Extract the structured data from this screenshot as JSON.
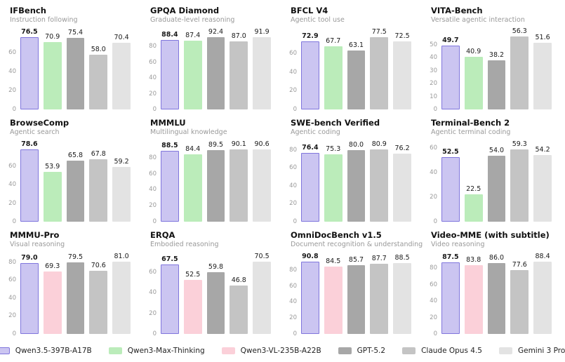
{
  "legend": {
    "position": "bottom-center",
    "models": [
      {
        "label": "Qwen3.5-397B-A17B",
        "fill": "#cbc5f1",
        "border": "#8076dd",
        "highlight": true
      },
      {
        "label": "Qwen3-Max-Thinking",
        "fill": "#bbecba",
        "border": "",
        "highlight": false
      },
      {
        "label": "Qwen3-VL-235B-A22B",
        "fill": "#fbd0d9",
        "border": "",
        "highlight": false
      },
      {
        "label": "GPT-5.2",
        "fill": "#a7a7a7",
        "border": "",
        "highlight": false
      },
      {
        "label": "Claude Opus 4.5",
        "fill": "#c4c4c4",
        "border": "",
        "highlight": false
      },
      {
        "label": "Gemini 3 Pro",
        "fill": "#e3e3e3",
        "border": "",
        "highlight": false
      }
    ]
  },
  "chart_style": {
    "grid": "off",
    "value_labels": "on",
    "y_headroom_factor": 1.015,
    "tick_label_color": "#9a9a9a"
  },
  "chart_data": [
    {
      "type": "bar",
      "title": "IFBench",
      "subtitle": "Instruction following",
      "tick_step": 20,
      "ylim": [
        0,
        77.6
      ],
      "series": [
        {
          "name": "Qwen3.5-397B-A17B",
          "value": 76.5
        },
        {
          "name": "Qwen3-Max-Thinking",
          "value": 70.9
        },
        {
          "name": "GPT-5.2",
          "value": 75.4
        },
        {
          "name": "Claude Opus 4.5",
          "value": 58.0
        },
        {
          "name": "Gemini 3 Pro",
          "value": 70.4
        }
      ]
    },
    {
      "type": "bar",
      "title": "GPQA Diamond",
      "subtitle": "Graduate-level reasoning",
      "tick_step": 20,
      "ylim": [
        0,
        93.8
      ],
      "series": [
        {
          "name": "Qwen3.5-397B-A17B",
          "value": 88.4
        },
        {
          "name": "Qwen3-Max-Thinking",
          "value": 87.4
        },
        {
          "name": "GPT-5.2",
          "value": 92.4
        },
        {
          "name": "Claude Opus 4.5",
          "value": 87.0
        },
        {
          "name": "Gemini 3 Pro",
          "value": 91.9
        }
      ]
    },
    {
      "type": "bar",
      "title": "BFCL V4",
      "subtitle": "Agentic tool use",
      "tick_step": 20,
      "ylim": [
        0,
        78.7
      ],
      "series": [
        {
          "name": "Qwen3.5-397B-A17B",
          "value": 72.9
        },
        {
          "name": "Qwen3-Max-Thinking",
          "value": 67.7
        },
        {
          "name": "GPT-5.2",
          "value": 63.1
        },
        {
          "name": "Claude Opus 4.5",
          "value": 77.5
        },
        {
          "name": "Gemini 3 Pro",
          "value": 72.5
        }
      ]
    },
    {
      "type": "bar",
      "title": "VITA-Bench",
      "subtitle": "Versatile agentic interaction",
      "tick_step": 10,
      "ylim": [
        0,
        57.1
      ],
      "series": [
        {
          "name": "Qwen3.5-397B-A17B",
          "value": 49.7
        },
        {
          "name": "Qwen3-Max-Thinking",
          "value": 40.9
        },
        {
          "name": "GPT-5.2",
          "value": 38.2
        },
        {
          "name": "Claude Opus 4.5",
          "value": 56.3
        },
        {
          "name": "Gemini 3 Pro",
          "value": 51.6
        }
      ]
    },
    {
      "type": "bar",
      "title": "BrowseComp",
      "subtitle": "Agentic search",
      "tick_step": 20,
      "ylim": [
        0,
        79.8
      ],
      "series": [
        {
          "name": "Qwen3.5-397B-A17B",
          "value": 78.6
        },
        {
          "name": "Qwen3-Max-Thinking",
          "value": 53.9
        },
        {
          "name": "GPT-5.2",
          "value": 65.8
        },
        {
          "name": "Claude Opus 4.5",
          "value": 67.8
        },
        {
          "name": "Gemini 3 Pro",
          "value": 59.2
        }
      ]
    },
    {
      "type": "bar",
      "title": "MMMLU",
      "subtitle": "Multilingual knowledge",
      "tick_step": 20,
      "ylim": [
        0,
        92.0
      ],
      "series": [
        {
          "name": "Qwen3.5-397B-A17B",
          "value": 88.5
        },
        {
          "name": "Qwen3-Max-Thinking",
          "value": 84.4
        },
        {
          "name": "GPT-5.2",
          "value": 89.5
        },
        {
          "name": "Claude Opus 4.5",
          "value": 90.1
        },
        {
          "name": "Gemini 3 Pro",
          "value": 90.6
        }
      ]
    },
    {
      "type": "bar",
      "title": "SWE-bench Verified",
      "subtitle": "Agentic coding",
      "tick_step": 20,
      "ylim": [
        0,
        82.1
      ],
      "series": [
        {
          "name": "Qwen3.5-397B-A17B",
          "value": 76.4
        },
        {
          "name": "Qwen3-Max-Thinking",
          "value": 75.3
        },
        {
          "name": "GPT-5.2",
          "value": 80.0
        },
        {
          "name": "Claude Opus 4.5",
          "value": 80.9
        },
        {
          "name": "Gemini 3 Pro",
          "value": 76.2
        }
      ]
    },
    {
      "type": "bar",
      "title": "Terminal-Bench 2",
      "subtitle": "Agentic terminal coding",
      "tick_step": 20,
      "ylim": [
        0,
        60.2
      ],
      "series": [
        {
          "name": "Qwen3.5-397B-A17B",
          "value": 52.5
        },
        {
          "name": "Qwen3-Max-Thinking",
          "value": 22.5
        },
        {
          "name": "GPT-5.2",
          "value": 54.0
        },
        {
          "name": "Claude Opus 4.5",
          "value": 59.3
        },
        {
          "name": "Gemini 3 Pro",
          "value": 54.2
        }
      ]
    },
    {
      "type": "bar",
      "title": "MMMU-Pro",
      "subtitle": "Visual reasoning",
      "tick_step": 20,
      "ylim": [
        0,
        82.2
      ],
      "series": [
        {
          "name": "Qwen3.5-397B-A17B",
          "value": 79.0
        },
        {
          "name": "Qwen3-VL-235B-A22B",
          "value": 69.3
        },
        {
          "name": "GPT-5.2",
          "value": 79.5
        },
        {
          "name": "Claude Opus 4.5",
          "value": 70.6
        },
        {
          "name": "Gemini 3 Pro",
          "value": 81.0
        }
      ]
    },
    {
      "type": "bar",
      "title": "ERQA",
      "subtitle": "Embodied reasoning",
      "tick_step": 20,
      "ylim": [
        0,
        71.6
      ],
      "series": [
        {
          "name": "Qwen3.5-397B-A17B",
          "value": 67.5
        },
        {
          "name": "Qwen3-VL-235B-A22B",
          "value": 52.5
        },
        {
          "name": "GPT-5.2",
          "value": 59.8
        },
        {
          "name": "Claude Opus 4.5",
          "value": 46.8
        },
        {
          "name": "Gemini 3 Pro",
          "value": 70.5
        }
      ]
    },
    {
      "type": "bar",
      "title": "OmniDocBench v1.5",
      "subtitle": "Document recognition & understanding",
      "tick_step": 20,
      "ylim": [
        0,
        92.2
      ],
      "series": [
        {
          "name": "Qwen3.5-397B-A17B",
          "value": 90.8
        },
        {
          "name": "Qwen3-VL-235B-A22B",
          "value": 84.5
        },
        {
          "name": "GPT-5.2",
          "value": 85.7
        },
        {
          "name": "Claude Opus 4.5",
          "value": 87.7
        },
        {
          "name": "Gemini 3 Pro",
          "value": 88.5
        }
      ]
    },
    {
      "type": "bar",
      "title": "Video-MME (with subtitle)",
      "subtitle": "Video reasoning",
      "tick_step": 20,
      "ylim": [
        0,
        89.7
      ],
      "series": [
        {
          "name": "Qwen3.5-397B-A17B",
          "value": 87.5
        },
        {
          "name": "Qwen3-VL-235B-A22B",
          "value": 83.8
        },
        {
          "name": "GPT-5.2",
          "value": 86.0
        },
        {
          "name": "Claude Opus 4.5",
          "value": 77.6
        },
        {
          "name": "Gemini 3 Pro",
          "value": 88.4
        }
      ]
    }
  ]
}
